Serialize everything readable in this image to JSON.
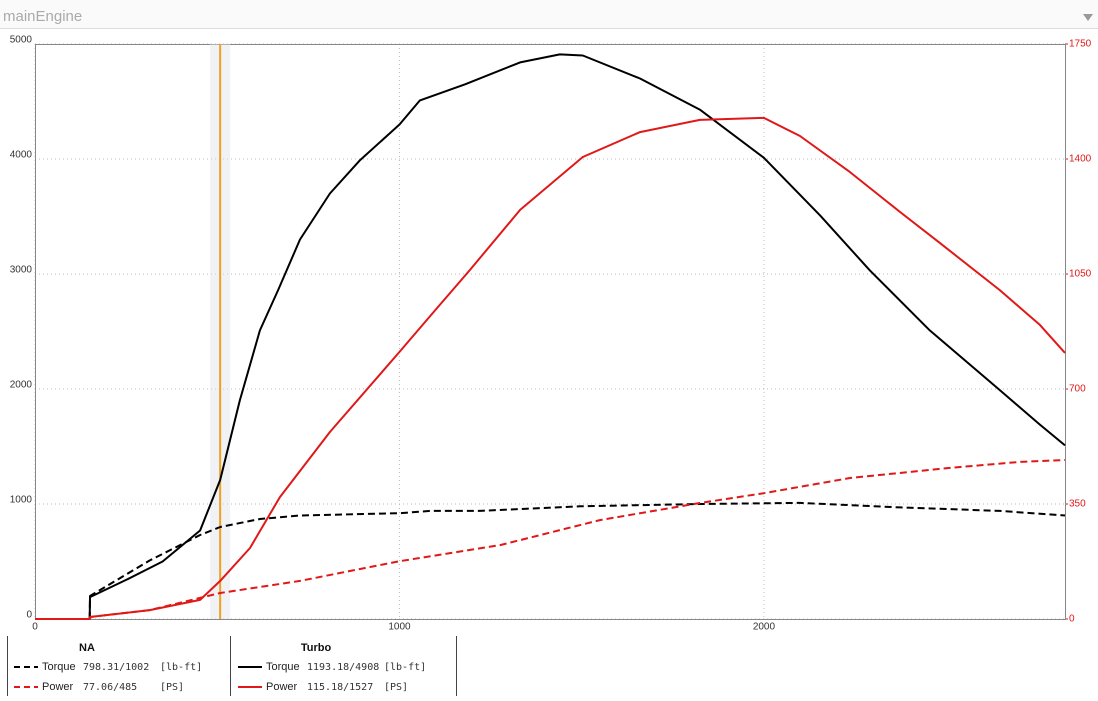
{
  "header": {
    "title": "mainEngine"
  },
  "chart_data": {
    "type": "line",
    "xlim": [
      0,
      2826
    ],
    "xticks": [
      0,
      1000,
      2000
    ],
    "ylim": [
      0,
      5000
    ],
    "yticks": [
      0,
      1000,
      2000,
      3000,
      4000,
      5000
    ],
    "y2lim": [
      0,
      1750
    ],
    "y2ticks": [
      0,
      350,
      700,
      1050,
      1400,
      1750
    ],
    "y2_color": "#e01818",
    "grid": true,
    "cursor_x": 508,
    "cursor_color": "#f0a020",
    "series": [
      {
        "name": "Torque",
        "group": "NA",
        "readout": "798.31/1002",
        "unit": "[lb-ft]",
        "color": "#000000",
        "dash": true,
        "x": [
          0,
          150,
          151,
          315,
          453,
          508,
          617,
          727,
          1000,
          1084,
          1221,
          1495,
          1824,
          2099,
          2373,
          2647,
          2826
        ],
        "values": [
          0,
          0,
          200,
          510,
          730,
          800,
          870,
          900,
          920,
          940,
          940,
          980,
          1000,
          1010,
          970,
          940,
          900
        ]
      },
      {
        "name": "Power",
        "group": "NA",
        "readout": "77.06/485",
        "unit": "[PS]",
        "color": "#e01818",
        "dash": true,
        "axis": "y2",
        "x": [
          0,
          150,
          151,
          315,
          508,
          727,
          1000,
          1276,
          1550,
          1824,
          2000,
          2236,
          2510,
          2702,
          2826
        ],
        "values": [
          0,
          0,
          6,
          27,
          79,
          116,
          176,
          225,
          301,
          353,
          383,
          429,
          460,
          478,
          484
        ]
      },
      {
        "name": "Torque",
        "group": "Turbo",
        "readout": "1193.18/4908",
        "unit": "[lb-ft]",
        "color": "#000000",
        "dash": false,
        "x": [
          0,
          150,
          151,
          250,
          350,
          453,
          508,
          562,
          617,
          667,
          727,
          809,
          892,
          1000,
          1056,
          1180,
          1331,
          1440,
          1503,
          1660,
          1824,
          2000,
          2154,
          2291,
          2455,
          2647,
          2757,
          2826
        ],
        "values": [
          0,
          0,
          190,
          340,
          500,
          770,
          1210,
          1900,
          2510,
          2860,
          3300,
          3700,
          3990,
          4300,
          4510,
          4650,
          4840,
          4910,
          4900,
          4700,
          4430,
          4010,
          3510,
          3030,
          2510,
          1990,
          1690,
          1510
        ]
      },
      {
        "name": "Power",
        "group": "Turbo",
        "readout": "115.18/1527",
        "unit": "[PS]",
        "color": "#e01818",
        "dash": false,
        "axis": "y2",
        "x": [
          0,
          150,
          151,
          315,
          453,
          508,
          590,
          672,
          809,
          1000,
          1084,
          1193,
          1331,
          1503,
          1660,
          1824,
          2000,
          2099,
          2236,
          2373,
          2483,
          2647,
          2757,
          2826
        ],
        "values": [
          0,
          0,
          6,
          27,
          58,
          116,
          216,
          371,
          569,
          813,
          922,
          1062,
          1245,
          1406,
          1482,
          1519,
          1525,
          1470,
          1360,
          1239,
          1144,
          1001,
          895,
          810
        ]
      }
    ]
  }
}
